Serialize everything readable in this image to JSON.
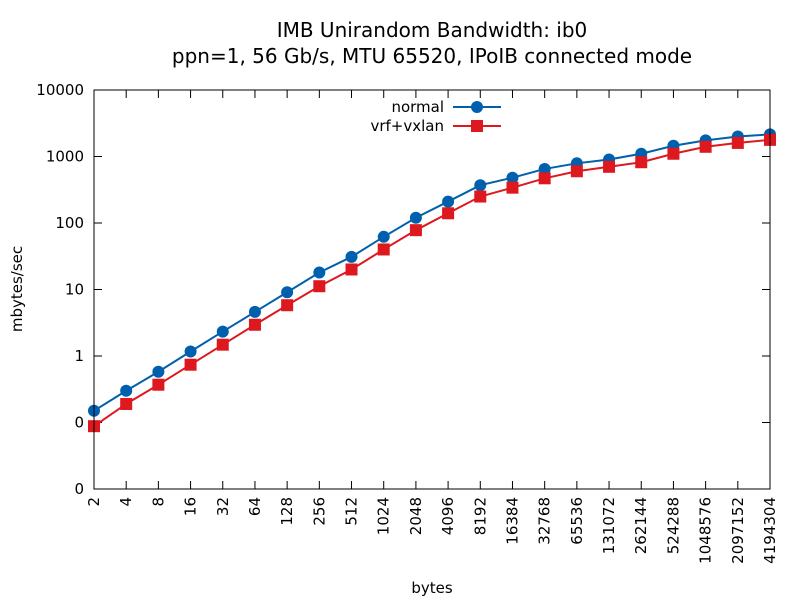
{
  "chart_data": {
    "type": "line",
    "title": "IMB Unirandom Bandwidth: ib0",
    "subtitle": "ppn=1, 56 Gb/s, MTU 65520, IPoIB connected mode",
    "xlabel": "bytes",
    "ylabel": "mbytes/sec",
    "x_scale": "log2",
    "y_scale": "log10",
    "grid": false,
    "legend_position": "top-center",
    "categories": [
      2,
      4,
      8,
      16,
      32,
      64,
      128,
      256,
      512,
      1024,
      2048,
      4096,
      8192,
      16384,
      32768,
      65536,
      131072,
      262144,
      524288,
      1048576,
      2097152,
      4194304
    ],
    "x_tick_labels": [
      "2",
      "4",
      "8",
      "16",
      "32",
      "64",
      "128",
      "256",
      "512",
      "1024",
      "2048",
      "4096",
      "8192",
      "16384",
      "32768",
      "65536",
      "131072",
      "262144",
      "524288",
      "1048576",
      "2097152",
      "4194304"
    ],
    "y_ticks": [
      0.01,
      0.1,
      1,
      10,
      100,
      1000,
      10000
    ],
    "y_tick_labels": [
      "0",
      "0",
      "1",
      "10",
      "100",
      "1000",
      "10000"
    ],
    "ylim": [
      0.01,
      10000
    ],
    "series": [
      {
        "name": "normal",
        "color": "#0060ad",
        "marker": "circle",
        "values": [
          0.15,
          0.3,
          0.58,
          1.17,
          2.33,
          4.6,
          9.1,
          18,
          31,
          62,
          120,
          210,
          370,
          480,
          650,
          790,
          900,
          1100,
          1450,
          1750,
          2000,
          2150
        ]
      },
      {
        "name": "vrf+vxlan",
        "color": "#dd181f",
        "marker": "square",
        "values": [
          0.088,
          0.19,
          0.37,
          0.74,
          1.48,
          2.95,
          5.8,
          11.2,
          20,
          40,
          78,
          140,
          250,
          340,
          470,
          600,
          700,
          820,
          1100,
          1400,
          1600,
          1780
        ]
      }
    ]
  }
}
